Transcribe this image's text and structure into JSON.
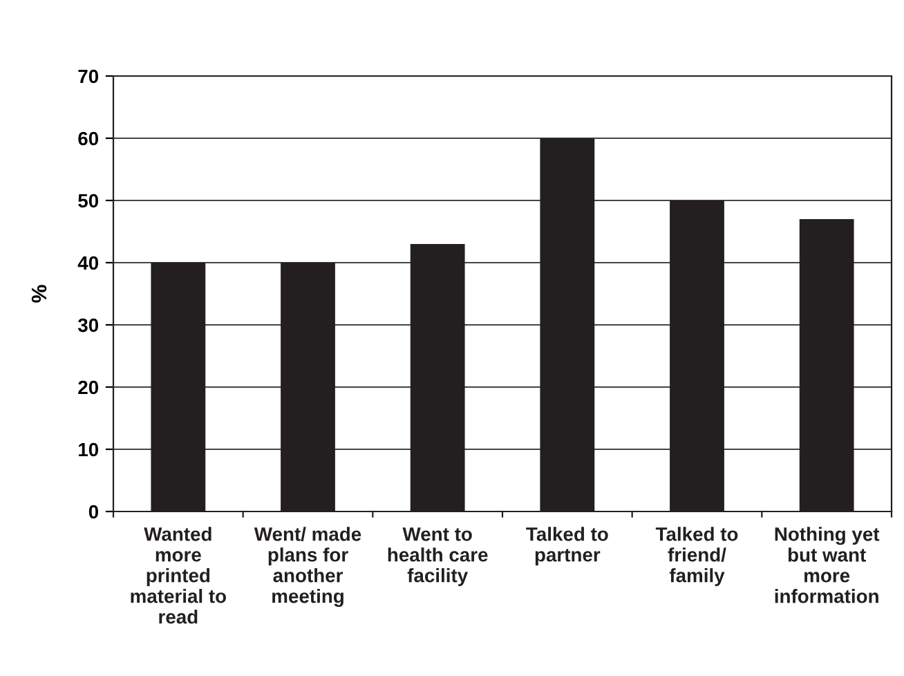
{
  "chart_data": {
    "type": "bar",
    "categories": [
      "Wanted\nmore\nprinted\nmaterial to\nread",
      "Went/ made\nplans for\nanother\nmeeting",
      "Went to\nhealth care\nfacility",
      "Talked to\npartner",
      "Talked to\nfriend/\nfamily",
      "Nothing yet\nbut want\nmore\ninformation"
    ],
    "values": [
      40,
      40,
      43,
      60,
      50,
      47
    ],
    "color": "#231f20",
    "ylabel": "%",
    "ylim": [
      0,
      70
    ],
    "yticks": [
      0,
      10,
      20,
      30,
      40,
      50,
      60,
      70
    ],
    "grid": "y"
  }
}
